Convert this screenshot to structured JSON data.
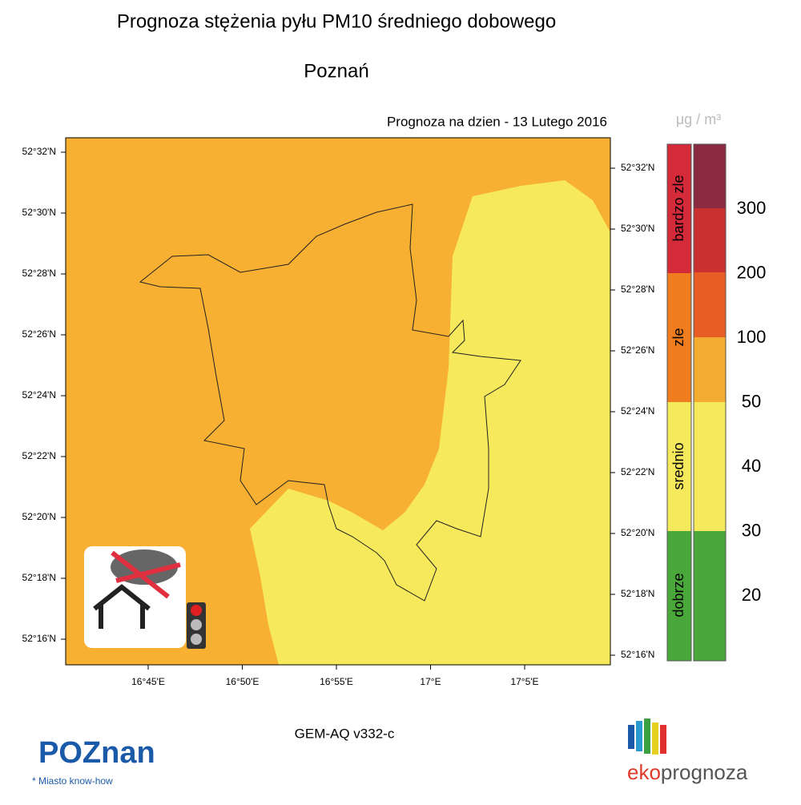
{
  "header": {
    "title": "Prognoza stężenia pyłu PM10 średniego dobowego",
    "subtitle": "Poznań",
    "date_label": "Prognoza na dzien -  13 Lutego 2016"
  },
  "map": {
    "lat_labels_left": [
      "52°32'N",
      "52°30'N",
      "52°28'N",
      "52°26'N",
      "52°24'N",
      "52°22'N",
      "52°20'N",
      "52°18'N",
      "52°16'N"
    ],
    "lat_labels_right": [
      "52°32'N",
      "52°30'N",
      "52°28'N",
      "52°26'N",
      "52°24'N",
      "52°22'N",
      "52°20'N",
      "52°18'N",
      "52°16'N"
    ],
    "lon_labels": [
      "16°45'E",
      "16°50'E",
      "16°55'E",
      "17°E",
      "17°5'E"
    ]
  },
  "legend": {
    "unit": "μg / m³",
    "categories": [
      "bardzo zle",
      "zle",
      "srednio",
      "dobrze"
    ],
    "scale_labels": [
      "300",
      "200",
      "100",
      "50",
      "40",
      "30",
      "20"
    ]
  },
  "footer": {
    "model": "GEM-AQ v332-c",
    "city_logo": "POZnan",
    "city_tagline": "* Miasto know-how",
    "brand_a": "eko",
    "brand_b": "prognoza"
  }
}
